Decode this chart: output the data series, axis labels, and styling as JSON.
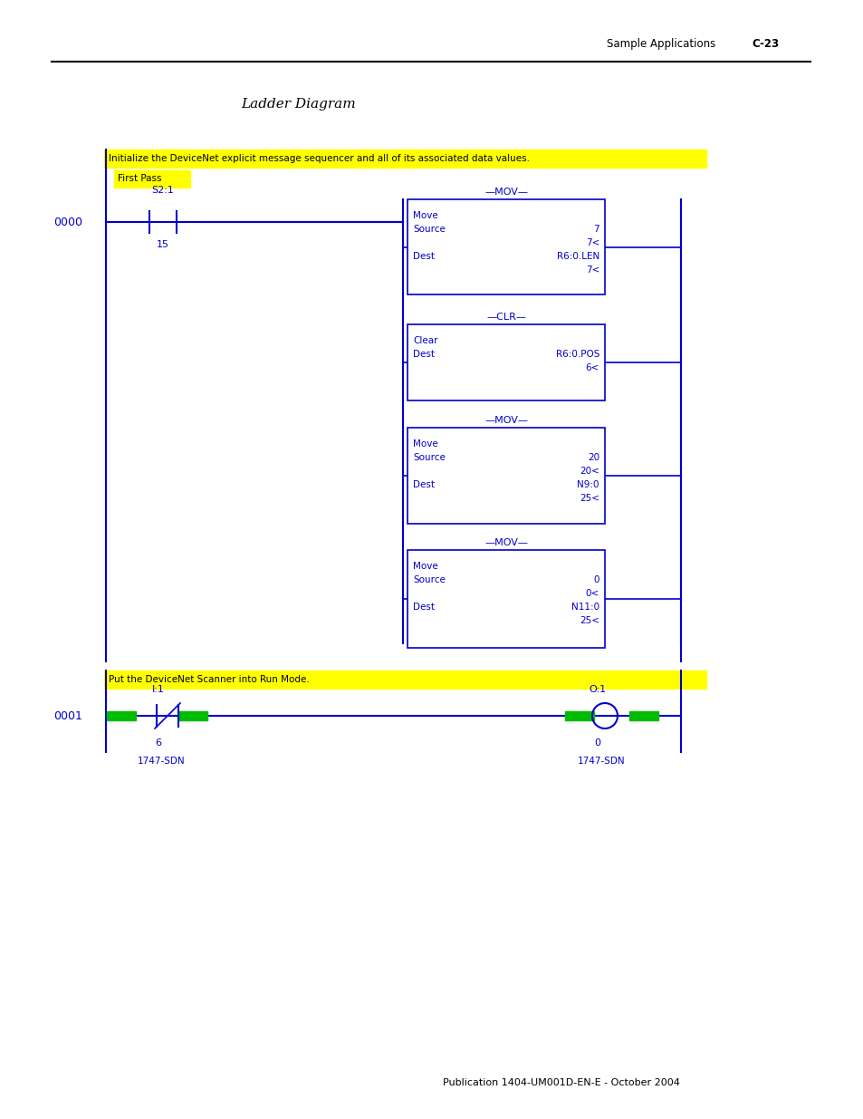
{
  "page_header_left": "Sample Applications",
  "page_header_right": "C-23",
  "title": "Ladder Diagram",
  "footer": "Publication 1404-UM001D-EN-E - October 2004",
  "bg_color": "#ffffff",
  "diagram_color": "#0000cc",
  "yellow_bg": "#ffff00",
  "green_color": "#00bb00",
  "rung0_label": "0000",
  "rung1_label": "0001",
  "rung0_banner": "Initialize the DeviceNet explicit message sequencer and all of its associated data values.",
  "rung0_sub_banner": "First Pass",
  "rung0_contact_label": "S2:1",
  "rung0_contact_value": "15",
  "rung1_banner": "Put the DeviceNet Scanner into Run Mode.",
  "rung1_contact_label": "I:1",
  "rung1_contact_value": "6",
  "rung1_contact_sub": "1747-SDN",
  "rung1_coil_label": "O:1",
  "rung1_coil_value": "0",
  "rung1_coil_sub": "1747-SDN",
  "boxes": [
    {
      "title": "MOV",
      "content": [
        [
          "Move",
          "",
          ""
        ],
        [
          "Source",
          "",
          "7"
        ],
        [
          "",
          "",
          "7<"
        ],
        [
          "Dest",
          "",
          "R6:0.LEN"
        ],
        [
          "",
          "",
          "7<"
        ]
      ]
    },
    {
      "title": "CLR",
      "content": [
        [
          "Clear",
          "",
          ""
        ],
        [
          "Dest",
          "",
          "R6:0.POS"
        ],
        [
          "",
          "",
          "6<"
        ]
      ]
    },
    {
      "title": "MOV",
      "content": [
        [
          "Move",
          "",
          ""
        ],
        [
          "Source",
          "",
          "20"
        ],
        [
          "",
          "",
          "20<"
        ],
        [
          "Dest",
          "",
          "N9:0"
        ],
        [
          "",
          "",
          "25<"
        ]
      ]
    },
    {
      "title": "MOV",
      "content": [
        [
          "Move",
          "",
          ""
        ],
        [
          "Source",
          "",
          "0"
        ],
        [
          "",
          "",
          "0<"
        ],
        [
          "Dest",
          "",
          "N11:0"
        ],
        [
          "",
          "",
          "25<"
        ]
      ]
    }
  ]
}
